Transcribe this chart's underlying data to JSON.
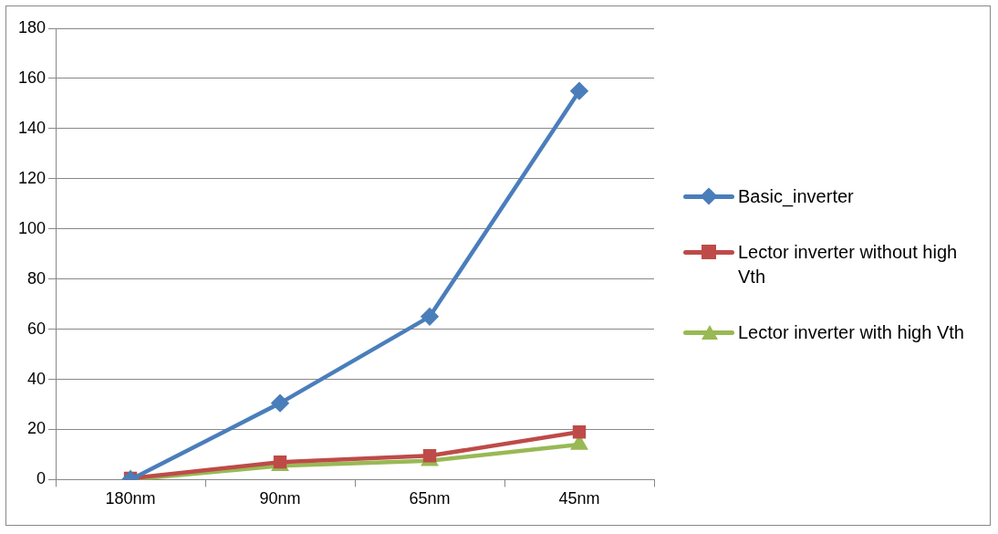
{
  "chart_data": {
    "type": "line",
    "categories": [
      "180nm",
      "90nm",
      "65nm",
      "45nm"
    ],
    "series": [
      {
        "name": "Basic_inverter",
        "color": "#4a7ebb",
        "marker": "diamond",
        "values": [
          0,
          30.5,
          65,
          155
        ]
      },
      {
        "name": "Lector inverter without high Vth",
        "color": "#be4b48",
        "marker": "square",
        "values": [
          0.5,
          7,
          9.5,
          19
        ]
      },
      {
        "name": "Lector inverter with high Vth",
        "color": "#98b954",
        "marker": "triangle",
        "values": [
          0,
          5.5,
          7.5,
          14
        ]
      }
    ],
    "ylim": [
      0,
      180
    ],
    "yticks": [
      0,
      20,
      40,
      60,
      80,
      100,
      120,
      140,
      160,
      180
    ],
    "grid": "y",
    "legend": "right",
    "line_style": "solid"
  }
}
